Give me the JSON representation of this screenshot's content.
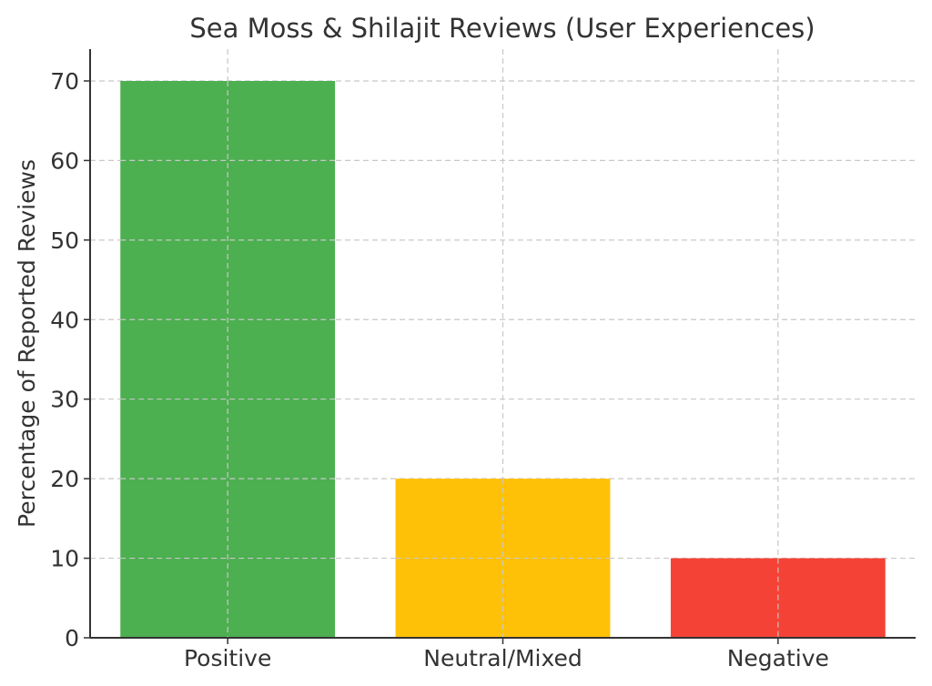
{
  "chart_data": {
    "type": "bar",
    "title": "Sea Moss & Shilajit Reviews (User Experiences)",
    "xlabel": "",
    "ylabel": "Percentage of Reported Reviews",
    "categories": [
      "Positive",
      "Neutral/Mixed",
      "Negative"
    ],
    "values": [
      70,
      20,
      10
    ],
    "colors": [
      "#4caf50",
      "#ffc107",
      "#f44336"
    ],
    "ylim": [
      0,
      74
    ],
    "yticks": [
      0,
      10,
      20,
      30,
      40,
      50,
      60,
      70
    ],
    "grid": true,
    "legend": "none"
  }
}
